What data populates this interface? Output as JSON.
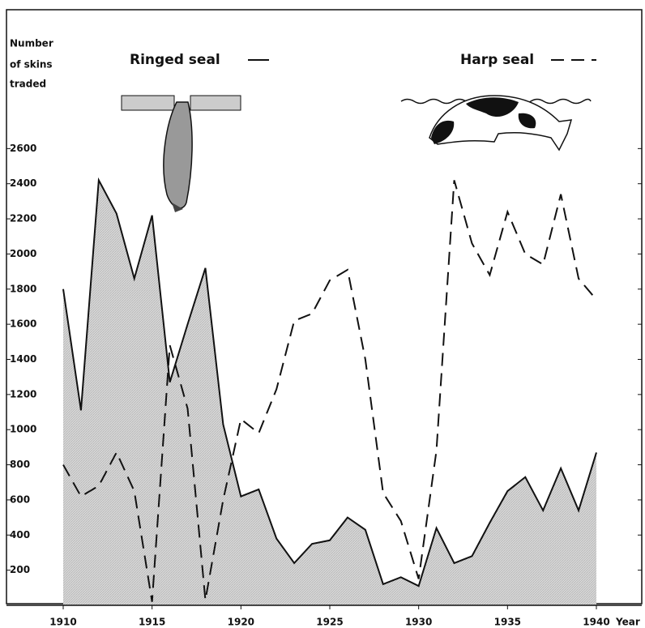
{
  "chart_data": {
    "type": "line",
    "y_axis_label": [
      "Number",
      "of skins",
      "traded"
    ],
    "x_axis_label": "Year",
    "x": [
      1910,
      1911,
      1912,
      1913,
      1914,
      1915,
      1916,
      1917,
      1918,
      1919,
      1920,
      1921,
      1922,
      1923,
      1924,
      1925,
      1926,
      1927,
      1928,
      1929,
      1930,
      1931,
      1932,
      1933,
      1934,
      1935,
      1936,
      1937,
      1938,
      1939,
      1940
    ],
    "series": [
      {
        "name": "Ringed seal",
        "color": "#111111",
        "style": "solid",
        "fill": "#cfcfcf",
        "values": [
          1800,
          1110,
          2420,
          2230,
          1860,
          2220,
          1270,
          1600,
          1920,
          1030,
          620,
          660,
          380,
          240,
          350,
          370,
          500,
          430,
          120,
          160,
          110,
          440,
          240,
          280,
          470,
          650,
          730,
          540,
          780,
          540,
          870
        ]
      },
      {
        "name": "Harp seal",
        "color": "#111111",
        "style": "dashed",
        "values": [
          800,
          620,
          680,
          870,
          650,
          20,
          1480,
          1120,
          30,
          600,
          1060,
          980,
          1230,
          1620,
          1660,
          1850,
          1910,
          1400,
          640,
          480,
          150,
          880,
          2420,
          2060,
          1880,
          2240,
          2000,
          1940,
          2340,
          1860,
          1740
        ]
      }
    ],
    "xlim": [
      1910,
      1940
    ],
    "xticks": [
      1910,
      1915,
      1920,
      1925,
      1930,
      1935,
      1940
    ],
    "ylim": [
      0,
      2800
    ],
    "yticks": [
      200,
      400,
      600,
      800,
      1000,
      1200,
      1400,
      1600,
      1800,
      2000,
      2200,
      2400,
      2600
    ]
  }
}
